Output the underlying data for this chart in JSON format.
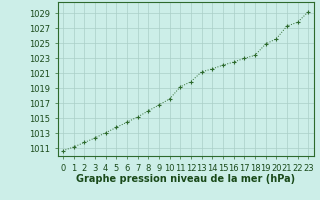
{
  "hours": [
    0,
    1,
    2,
    3,
    4,
    5,
    6,
    7,
    8,
    9,
    10,
    11,
    12,
    13,
    14,
    15,
    16,
    17,
    18,
    19,
    20,
    21,
    22,
    23
  ],
  "pressure": [
    1010.7,
    1011.2,
    1011.8,
    1012.4,
    1013.1,
    1013.8,
    1014.5,
    1015.2,
    1016.0,
    1016.8,
    1017.6,
    1019.2,
    1019.9,
    1021.2,
    1021.6,
    1022.1,
    1022.5,
    1023.0,
    1023.4,
    1024.9,
    1025.6,
    1027.3,
    1027.8,
    1029.2
  ],
  "line_color": "#2d6a2d",
  "marker": "+",
  "bg_color": "#cceee8",
  "grid_color": "#aacfc8",
  "ylabel_ticks": [
    1011,
    1013,
    1015,
    1017,
    1019,
    1021,
    1023,
    1025,
    1027,
    1029
  ],
  "ylim": [
    1010.0,
    1030.5
  ],
  "xlim": [
    -0.5,
    23.5
  ],
  "xlabel": "Graphe pression niveau de la mer (hPa)",
  "tick_color": "#1a4a1a",
  "tick_fontsize": 6,
  "label_fontsize": 7,
  "spine_color": "#2d6a2d",
  "marker_size": 3,
  "linewidth": 0.7
}
